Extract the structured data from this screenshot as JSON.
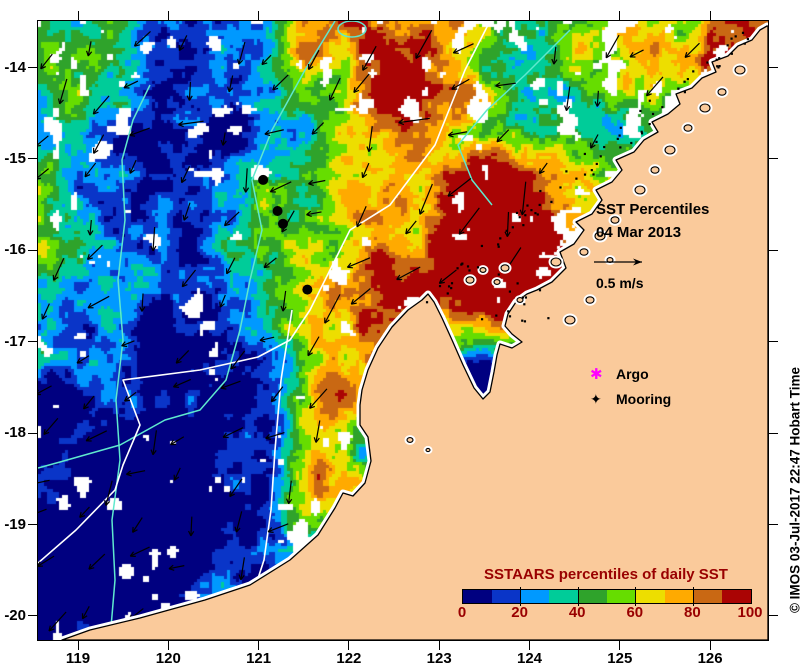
{
  "annotations": {
    "title_line1": "SST Percentiles",
    "date_line": "04 Mar 2013",
    "vector_scale_label": "0.5 m/s",
    "copyright": "© IMOS 03-Jul-2017 22:47 Hobart Time"
  },
  "legend": {
    "argo_label": "Argo",
    "mooring_label": "Mooring",
    "argo_color": "#FF00FF",
    "mooring_color": "#000000",
    "argo_marker": "✱",
    "mooring_marker": "✦"
  },
  "colors": {
    "land": "#FACA9B",
    "no_data": "#FFFFFF",
    "coastline": "#000000",
    "shelf_contour": "#5FE8CE",
    "front_contour": "#FFFFFF",
    "vector_arrow": "#000000",
    "colorbar_text": "#990000"
  },
  "chart_data": {
    "type": "heatmap",
    "title": "SST Percentiles",
    "date": "04 Mar 2013",
    "x_axis": {
      "ticks": [
        119,
        120,
        121,
        122,
        123,
        124,
        125,
        126
      ],
      "range": [
        118.56,
        126.63
      ]
    },
    "y_axis": {
      "ticks": [
        -14,
        -15,
        -16,
        -17,
        -18,
        -19,
        -20
      ],
      "range": [
        -20.26,
        -13.49
      ]
    },
    "colorbar": {
      "title": "SSTAARS percentiles of daily SST",
      "ticks": [
        0,
        20,
        40,
        60,
        80,
        100
      ],
      "range": [
        0,
        100
      ],
      "colors": [
        "#000080",
        "#0A35C8",
        "#0099FF",
        "#00CC99",
        "#2FA32B",
        "#66DD00",
        "#EDDE00",
        "#FFAA00",
        "#C96813",
        "#AA0404"
      ]
    },
    "vector_scale": {
      "label": "0.5 m/s",
      "value_m_per_s": 0.5
    },
    "markers": {
      "moorings": [
        {
          "lon": 121.05,
          "lat": -15.23
        },
        {
          "lon": 121.21,
          "lat": -15.57
        },
        {
          "lon": 121.27,
          "lat": -15.71
        },
        {
          "lon": 121.54,
          "lat": -16.43
        }
      ],
      "argo": []
    }
  }
}
